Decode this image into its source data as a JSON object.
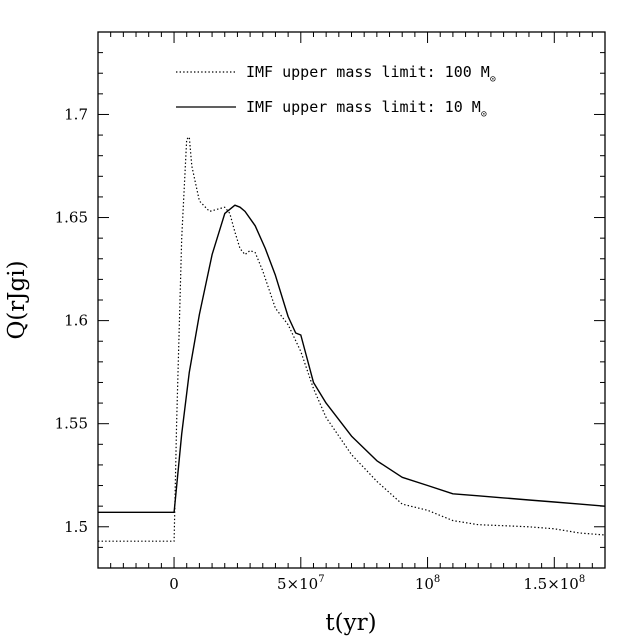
{
  "chart_data": {
    "type": "line",
    "xlabel": "t(yr)",
    "ylabel": "Q(rJgi)",
    "xlim": [
      -30000000,
      170000000
    ],
    "ylim": [
      1.48,
      1.74
    ],
    "x_ticks": [
      {
        "value": 0,
        "label": "0"
      },
      {
        "value": 50000000,
        "label": "5×10",
        "sup": "7"
      },
      {
        "value": 100000000,
        "label": "10",
        "sup": "8"
      },
      {
        "value": 150000000,
        "label": "1.5×10",
        "sup": "8"
      }
    ],
    "y_ticks": [
      {
        "value": 1.5,
        "label": "1.5"
      },
      {
        "value": 1.55,
        "label": "1.55"
      },
      {
        "value": 1.6,
        "label": "1.6"
      },
      {
        "value": 1.65,
        "label": "1.65"
      },
      {
        "value": 1.7,
        "label": "1.7"
      }
    ],
    "legend_position": "top-right",
    "series": [
      {
        "name": "IMF upper mass limit: 100 M",
        "name_symbol": "⊙",
        "style": "dotted",
        "x": [
          -30000000,
          0,
          1000000,
          3000000,
          5000000,
          6000000,
          7000000,
          10000000,
          14000000,
          17000000,
          20000000,
          22000000,
          24000000,
          26000000,
          28000000,
          30000000,
          32000000,
          35000000,
          40000000,
          45000000,
          50000000,
          55000000,
          60000000,
          70000000,
          80000000,
          90000000,
          100000000,
          110000000,
          120000000,
          130000000,
          140000000,
          150000000,
          160000000,
          170000000
        ],
        "values": [
          1.493,
          1.493,
          1.55,
          1.64,
          1.688,
          1.689,
          1.675,
          1.658,
          1.653,
          1.654,
          1.655,
          1.652,
          1.643,
          1.635,
          1.632,
          1.634,
          1.633,
          1.624,
          1.606,
          1.598,
          1.585,
          1.567,
          1.553,
          1.535,
          1.522,
          1.511,
          1.508,
          1.503,
          1.501,
          1.5005,
          1.5,
          1.499,
          1.497,
          1.496
        ]
      },
      {
        "name": "IMF upper mass limit: 10 M",
        "name_symbol": "⊙",
        "style": "solid",
        "x": [
          -30000000,
          0,
          3000000,
          6000000,
          10000000,
          15000000,
          20000000,
          24000000,
          26000000,
          28000000,
          32000000,
          36000000,
          40000000,
          45000000,
          48000000,
          50000000,
          55000000,
          60000000,
          70000000,
          80000000,
          90000000,
          100000000,
          110000000,
          120000000,
          130000000,
          140000000,
          150000000,
          160000000,
          170000000
        ],
        "values": [
          1.507,
          1.507,
          1.545,
          1.575,
          1.603,
          1.632,
          1.652,
          1.656,
          1.655,
          1.653,
          1.646,
          1.635,
          1.622,
          1.602,
          1.594,
          1.593,
          1.57,
          1.56,
          1.544,
          1.532,
          1.524,
          1.52,
          1.516,
          1.515,
          1.514,
          1.513,
          1.512,
          1.511,
          1.51
        ]
      }
    ]
  }
}
